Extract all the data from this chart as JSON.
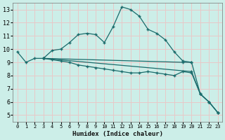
{
  "xlabel": "Humidex (Indice chaleur)",
  "background_color": "#cceee8",
  "grid_color": "#e8c8c8",
  "line_color": "#1a6b6b",
  "xlim": [
    -0.5,
    23.5
  ],
  "ylim": [
    4.5,
    13.5
  ],
  "yticks": [
    5,
    6,
    7,
    8,
    9,
    10,
    11,
    12,
    13
  ],
  "xticks": [
    0,
    1,
    2,
    3,
    4,
    5,
    6,
    7,
    8,
    9,
    10,
    11,
    12,
    13,
    14,
    15,
    16,
    17,
    18,
    19,
    20,
    21,
    22,
    23
  ],
  "lines": [
    {
      "x": [
        0,
        1,
        2,
        3,
        4,
        5,
        6,
        7,
        8,
        9,
        10,
        11,
        12,
        13,
        14,
        15,
        16,
        17,
        18,
        19,
        20
      ],
      "y": [
        9.8,
        9.0,
        9.3,
        9.3,
        9.9,
        10.0,
        10.5,
        11.1,
        11.2,
        11.1,
        10.5,
        11.7,
        13.2,
        13.0,
        12.5,
        11.5,
        11.2,
        10.7,
        9.8,
        9.1,
        9.0
      ]
    },
    {
      "x": [
        3,
        19,
        20,
        21,
        22,
        23
      ],
      "y": [
        9.3,
        9.0,
        9.0,
        6.6,
        6.0,
        5.2
      ]
    },
    {
      "x": [
        3,
        20,
        21,
        22,
        23
      ],
      "y": [
        9.3,
        8.3,
        6.6,
        6.0,
        5.2
      ]
    },
    {
      "x": [
        3,
        4,
        5,
        6,
        7,
        8,
        9,
        10,
        11,
        12,
        13,
        14,
        15,
        16,
        17,
        18,
        19,
        20,
        21,
        22,
        23
      ],
      "y": [
        9.3,
        9.2,
        9.1,
        9.0,
        8.8,
        8.7,
        8.6,
        8.5,
        8.4,
        8.3,
        8.2,
        8.2,
        8.3,
        8.2,
        8.1,
        8.0,
        8.3,
        8.2,
        6.6,
        6.0,
        5.2
      ]
    }
  ]
}
